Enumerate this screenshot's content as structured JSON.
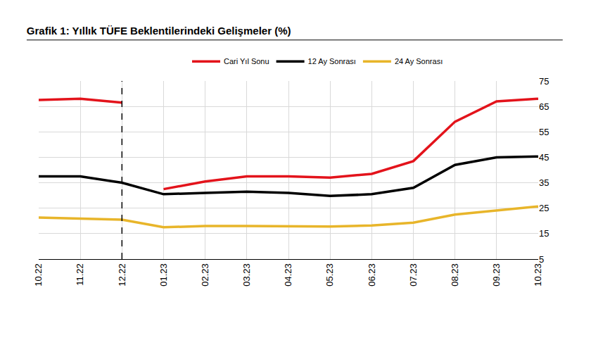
{
  "chart_data": {
    "type": "line",
    "title": "Grafik 1: Yıllık TÜFE Beklentilerindeki Gelişmeler (%)",
    "categories": [
      "10.22",
      "11.22",
      "12.22",
      "01.23",
      "02.23",
      "03.23",
      "04.23",
      "05.23",
      "06.23",
      "07.23",
      "08.23",
      "09.23",
      "10.23"
    ],
    "series": [
      {
        "name": "Cari Yıl Sonu",
        "color": "#e3131b",
        "values": [
          67.5,
          68,
          66.5,
          null,
          null,
          null,
          null,
          null,
          null,
          null,
          null,
          null,
          null
        ]
      },
      {
        "name": "12 Ay Sonrası",
        "color": "#000000",
        "values": [
          37.5,
          37.5,
          35,
          30.5,
          31,
          31.5,
          31,
          29.8,
          30.5,
          33,
          42,
          45,
          45.3
        ]
      },
      {
        "name": "24 Ay Sonrası",
        "color": "#e8b52a",
        "values": [
          21.3,
          21,
          20.5,
          17.5,
          18,
          18,
          17.8,
          17.8,
          18.2,
          19.3,
          22.5,
          24,
          25.7
        ]
      },
      {
        "color": "#e3131b",
        "values": [
          null,
          null,
          null,
          32.5,
          35.5,
          37.5,
          37.5,
          37,
          38.5,
          43.5,
          59,
          67,
          68
        ]
      }
    ],
    "ylim": [
      5,
      75
    ],
    "yticks": [
      5,
      15,
      25,
      35,
      45,
      55,
      65,
      75
    ],
    "grid": true,
    "legend": "top",
    "reference_lines": [
      {
        "x": "12.22",
        "line_style": "dashed",
        "color": "#000000"
      }
    ]
  }
}
